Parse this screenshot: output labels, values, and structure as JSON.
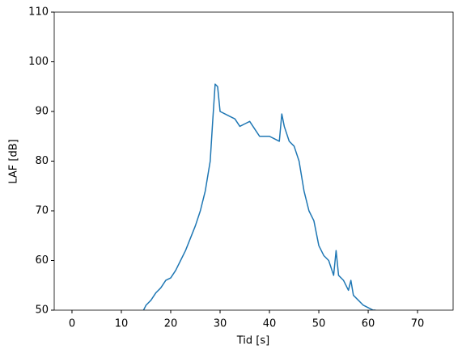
{
  "chart_data": {
    "type": "line",
    "x_label": "Tid [s]",
    "y_label": "LAF [dB]",
    "xlim": [
      -3.6,
      77.2
    ],
    "ylim": [
      50,
      110
    ],
    "xticks": [
      0,
      10,
      20,
      30,
      40,
      50,
      60,
      70
    ],
    "yticks": [
      50,
      60,
      70,
      80,
      90,
      100,
      110
    ],
    "series": [
      {
        "color": "#1f77b4",
        "x": [
          14.5,
          15,
          16,
          17,
          18,
          19,
          20,
          21,
          22,
          23,
          24,
          25,
          26,
          27,
          28,
          28.5,
          29,
          29.5,
          30,
          31,
          32,
          33,
          34,
          35,
          36,
          37,
          38,
          39,
          40,
          41,
          42,
          42.5,
          43,
          44,
          45,
          46,
          47,
          48,
          49,
          50,
          51,
          52,
          53,
          53.5,
          54,
          55,
          56,
          56.5,
          57,
          58,
          59,
          60,
          61,
          61.5
        ],
        "values": [
          50,
          51,
          52,
          53.5,
          54.5,
          56,
          56.5,
          58,
          60,
          62,
          64.5,
          67,
          70,
          74,
          80,
          88,
          95.5,
          95,
          90,
          89.5,
          89,
          88.5,
          87,
          87.5,
          88,
          86.5,
          85,
          85,
          85,
          84.5,
          84,
          89.5,
          87,
          84,
          83,
          80,
          74,
          70,
          68,
          63,
          61,
          60,
          57,
          62,
          57,
          56,
          54,
          56,
          53,
          52,
          51,
          50.5,
          50,
          50
        ]
      }
    ]
  }
}
